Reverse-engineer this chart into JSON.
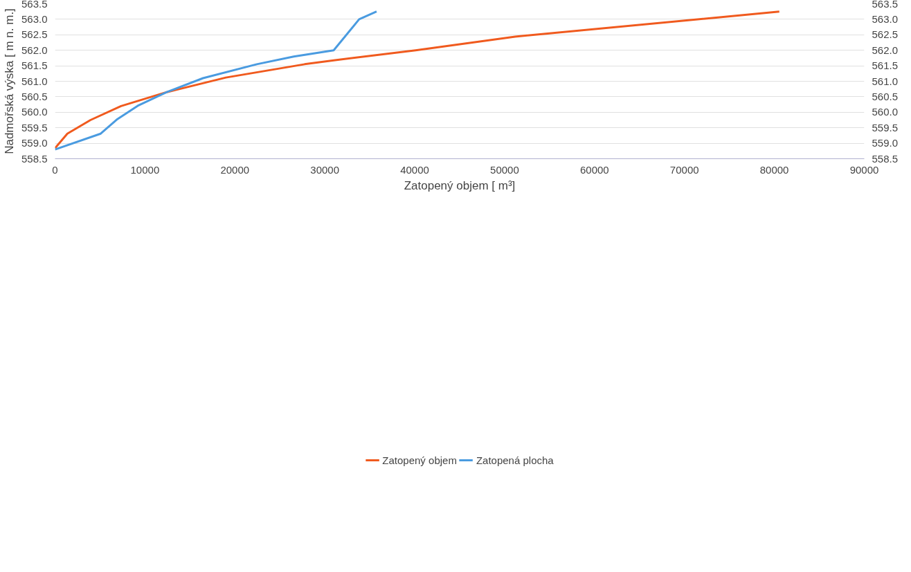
{
  "chart_data": {
    "type": "line",
    "xlabel": "Zatopený objem [ m³]",
    "ylabel": "Nadmořská výska [ m n. m.]",
    "xlim": [
      0,
      90000
    ],
    "xticks": [
      0,
      10000,
      20000,
      30000,
      40000,
      50000,
      60000,
      70000,
      80000,
      90000
    ],
    "ylim": [
      558.5,
      563.5
    ],
    "yticks": [
      {
        "value": 558.5,
        "label": "558.5"
      },
      {
        "value": 559,
        "label": "559.0"
      },
      {
        "value": 559.5,
        "label": "559.5"
      },
      {
        "value": 560,
        "label": "560.0"
      },
      {
        "value": 560.5,
        "label": "560.5"
      },
      {
        "value": 561,
        "label": "561.0"
      },
      {
        "value": 561.5,
        "label": "561.5"
      },
      {
        "value": 562,
        "label": "562.0"
      },
      {
        "value": 562.5,
        "label": "562.5"
      },
      {
        "value": 563,
        "label": "563.0"
      },
      {
        "value": 563.5,
        "label": "563.5"
      }
    ],
    "y2lim": [
      558.5,
      563.5
    ],
    "y2ticks": [
      {
        "value": 558.5,
        "label": "558.5"
      },
      {
        "value": 559,
        "label": "559.0"
      },
      {
        "value": 559.5,
        "label": "559.5"
      },
      {
        "value": 560,
        "label": "560.0"
      },
      {
        "value": 560.5,
        "label": "560.5"
      },
      {
        "value": 561,
        "label": "561.0"
      },
      {
        "value": 561.5,
        "label": "561.5"
      },
      {
        "value": 562,
        "label": "562.0"
      },
      {
        "value": 562.5,
        "label": "562.5"
      },
      {
        "value": 563,
        "label": "563.0"
      },
      {
        "value": 563.5,
        "label": "563.5"
      }
    ],
    "grid": "y",
    "legend": "bottom",
    "marker": "none",
    "line_style": "solid",
    "series": [
      {
        "name": "Zatopený objem",
        "color": "#f05a1e",
        "x": [
          0,
          1370,
          3950,
          7340,
          12430,
          19000,
          27760,
          31150,
          40100,
          51170,
          80550
        ],
        "values": [
          558.84,
          559.31,
          559.75,
          560.2,
          560.65,
          561.12,
          561.55,
          561.68,
          562.0,
          562.44,
          563.25
        ]
      },
      {
        "name": "Zatopená plocha",
        "color": "#4a9be0",
        "x": [
          0,
          5080,
          6940,
          9200,
          12430,
          16460,
          22440,
          26550,
          30990,
          33820,
          35760
        ],
        "values": [
          558.8,
          559.31,
          559.78,
          560.21,
          560.65,
          561.1,
          561.55,
          561.8,
          562.0,
          563.0,
          563.25
        ]
      }
    ]
  }
}
